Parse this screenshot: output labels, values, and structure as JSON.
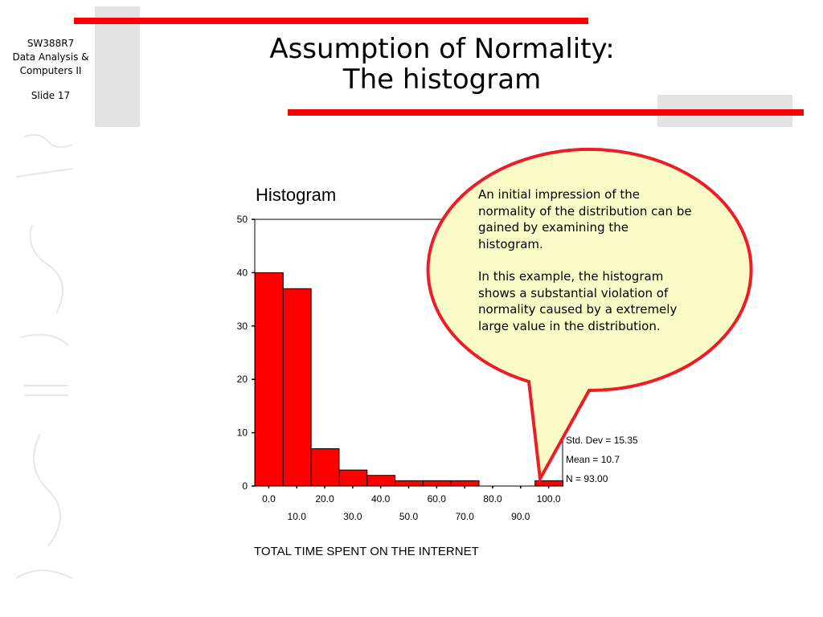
{
  "sidebar": {
    "course_code": "SW388R7",
    "course_name_line1": "Data Analysis &",
    "course_name_line2": "Computers II",
    "slide_label": "Slide 17"
  },
  "slide": {
    "title_line1": "Assumption of Normality:",
    "title_line2": "The histogram"
  },
  "callout": {
    "paragraph1": "An initial impression of the normality of the distribution can be gained by examining the histogram.",
    "paragraph2": "In this example, the histogram shows a substantial violation of normality caused by a extremely large value in the distribution."
  },
  "colors": {
    "accent_red": "#ff0000",
    "bar_fill": "#ff0000",
    "callout_fill": "#fbfbc8",
    "callout_border": "#ee1c25",
    "deco_gray": "#e3e3e3"
  },
  "chart_data": {
    "type": "bar",
    "title": "Histogram",
    "xlabel": "TOTAL TIME SPENT ON THE INTERNET",
    "ylabel": "",
    "bins": [
      {
        "center": 0.0,
        "count": 40
      },
      {
        "center": 10.0,
        "count": 37
      },
      {
        "center": 20.0,
        "count": 7
      },
      {
        "center": 30.0,
        "count": 3
      },
      {
        "center": 40.0,
        "count": 2
      },
      {
        "center": 50.0,
        "count": 1
      },
      {
        "center": 60.0,
        "count": 1
      },
      {
        "center": 70.0,
        "count": 1
      },
      {
        "center": 80.0,
        "count": 0
      },
      {
        "center": 90.0,
        "count": 0
      },
      {
        "center": 100.0,
        "count": 1
      }
    ],
    "x_ticks_upper": [
      "0.0",
      "20.0",
      "40.0",
      "60.0",
      "80.0",
      "100.0"
    ],
    "x_ticks_lower": [
      "10.0",
      "30.0",
      "50.0",
      "70.0",
      "90.0"
    ],
    "y_ticks": [
      "0",
      "10",
      "20",
      "30",
      "40",
      "50"
    ],
    "ylim": [
      0,
      50
    ],
    "stats": {
      "std_dev": "Std. Dev = 15.35",
      "mean": "Mean = 10.7",
      "n": "N = 93.00"
    }
  }
}
